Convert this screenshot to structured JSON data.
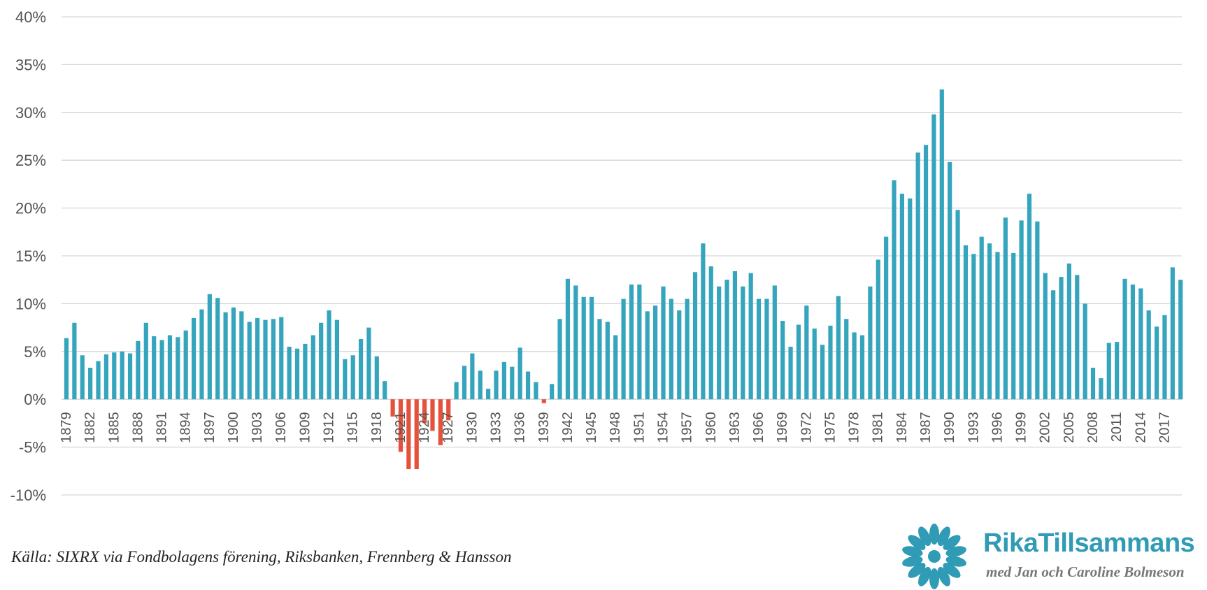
{
  "chart_data": {
    "type": "bar",
    "title": "",
    "xlabel": "",
    "ylabel": "",
    "ylim": [
      -10,
      40
    ],
    "yticks": [
      40,
      35,
      30,
      25,
      20,
      15,
      10,
      5,
      0,
      -5,
      -10
    ],
    "ytick_suffix": "%",
    "grid": true,
    "legend": "none",
    "positive_color": "#35a5bd",
    "negative_color": "#e4523b",
    "start_year": 1879,
    "label_step": 3,
    "values": [
      6.4,
      8.0,
      4.6,
      3.3,
      4.0,
      4.7,
      4.9,
      5.0,
      4.8,
      6.1,
      8.0,
      6.6,
      6.2,
      6.7,
      6.5,
      7.2,
      8.5,
      9.4,
      11.0,
      10.6,
      9.1,
      9.6,
      9.2,
      8.1,
      8.5,
      8.3,
      8.4,
      8.6,
      5.5,
      5.3,
      5.8,
      6.7,
      8.0,
      9.3,
      8.3,
      4.2,
      4.6,
      6.3,
      7.5,
      4.5,
      1.9,
      -1.8,
      -5.5,
      -7.3,
      -7.3,
      -2.5,
      -3.3,
      -4.8,
      -2.2,
      1.8,
      3.5,
      4.8,
      3.0,
      1.1,
      3.0,
      3.9,
      3.4,
      5.4,
      2.9,
      1.8,
      -0.4,
      1.6,
      8.4,
      12.6,
      11.9,
      10.7,
      10.7,
      8.4,
      8.1,
      6.7,
      10.5,
      12.0,
      12.0,
      9.2,
      9.8,
      11.8,
      10.5,
      9.3,
      10.5,
      13.3,
      16.3,
      13.9,
      11.8,
      12.5,
      13.4,
      11.8,
      13.2,
      10.5,
      10.5,
      11.9,
      8.2,
      5.5,
      7.8,
      9.8,
      7.4,
      5.7,
      7.7,
      10.8,
      8.4,
      7.0,
      6.7,
      11.8,
      14.6,
      17.0,
      22.9,
      21.5,
      21.0,
      25.8,
      26.6,
      29.8,
      32.4,
      24.8,
      19.8,
      16.1,
      15.2,
      17.0,
      16.3,
      15.4,
      19.0,
      15.3,
      18.7,
      21.5,
      18.6,
      13.2,
      11.4,
      12.8,
      14.2,
      13.0,
      10.0,
      3.3,
      2.2,
      5.9,
      6.0,
      12.6,
      12.0,
      11.6,
      9.3,
      7.6,
      8.8,
      13.8,
      12.5
    ]
  },
  "source_note": "Källa: SIXRX via Fondbolagens förening, Riksbanken, Frennberg & Hansson",
  "logo": {
    "brand_name": "RikaTillsammans",
    "tagline": "med Jan och Caroline Bolmeson",
    "brand_color": "#2f9bb5",
    "tagline_color": "#777777"
  }
}
